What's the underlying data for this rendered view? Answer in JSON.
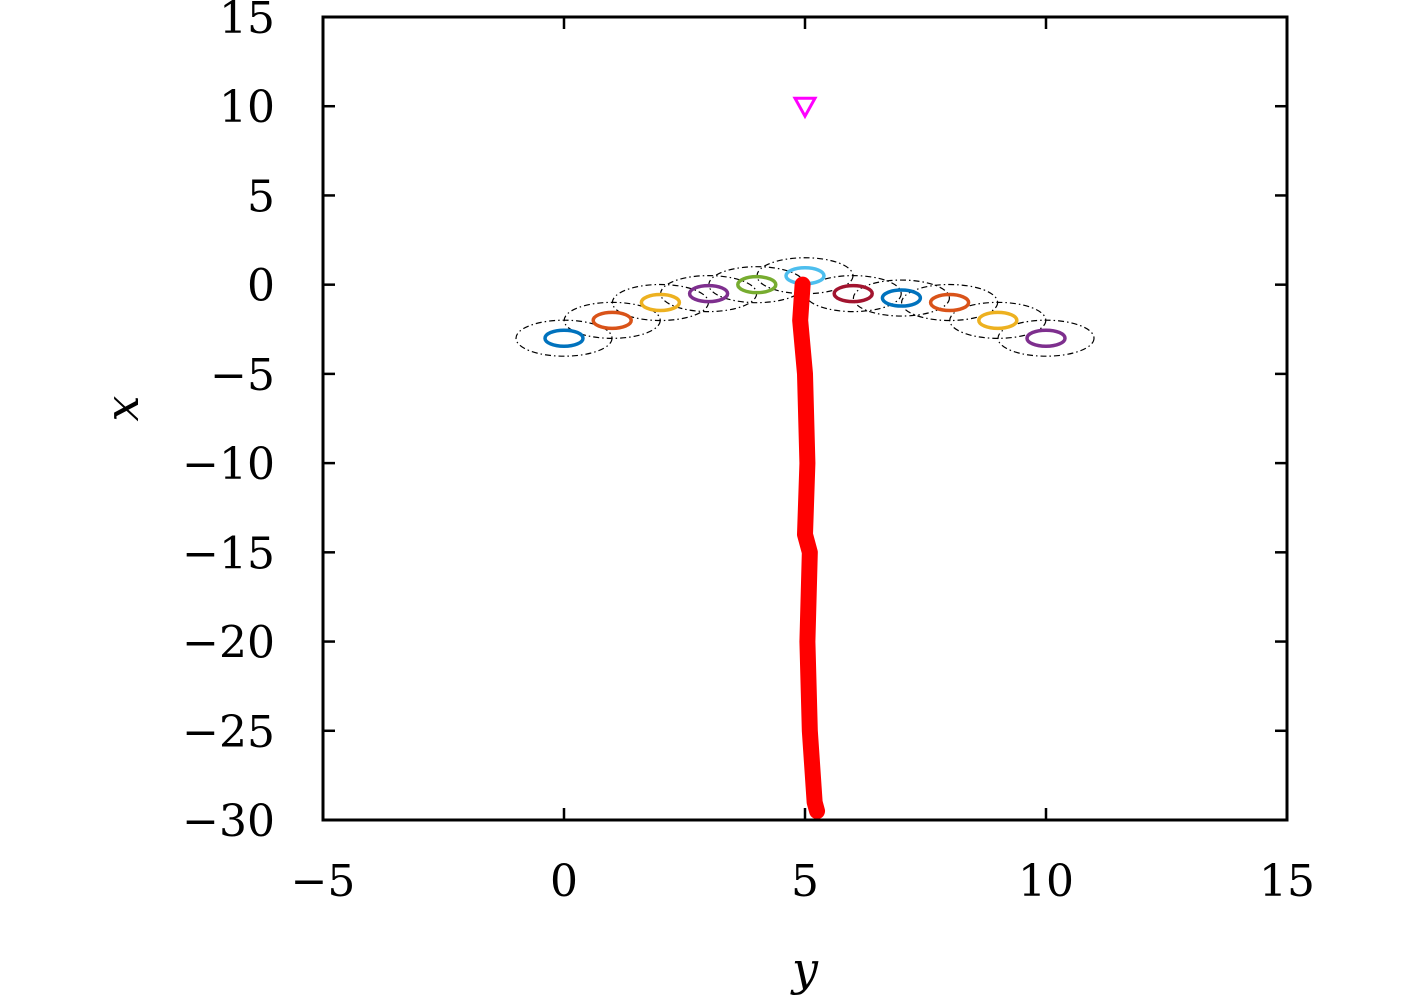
{
  "chart_data": {
    "type": "scatter",
    "title": "",
    "xlabel": "y",
    "ylabel": "x",
    "xlim": [
      -5,
      15
    ],
    "ylim": [
      -30,
      15
    ],
    "xticks": [
      -5,
      0,
      5,
      10,
      15
    ],
    "yticks": [
      15,
      10,
      5,
      0,
      -5,
      -10,
      -15,
      -20,
      -25,
      -30
    ],
    "xtick_labels": [
      "−5",
      "0",
      "5",
      "10",
      "15"
    ],
    "ytick_labels": [
      "15",
      "10",
      "5",
      "0",
      "−5",
      "−10",
      "−15",
      "−20",
      "−25",
      "−30"
    ],
    "grid": false,
    "legend": "none",
    "rings": [
      {
        "y": 0,
        "x": -3,
        "color": "#0072bd"
      },
      {
        "y": 1,
        "x": -2,
        "color": "#d95319"
      },
      {
        "y": 2,
        "x": -1,
        "color": "#edb120"
      },
      {
        "y": 3,
        "x": -0.5,
        "color": "#7e2f8e"
      },
      {
        "y": 4,
        "x": 0,
        "color": "#77ac30"
      },
      {
        "y": 5,
        "x": 0.5,
        "color": "#4dbeee"
      },
      {
        "y": 6,
        "x": -0.5,
        "color": "#a2142f"
      },
      {
        "y": 7,
        "x": -0.75,
        "color": "#0072bd"
      },
      {
        "y": 8,
        "x": -1,
        "color": "#d95319"
      },
      {
        "y": 9,
        "x": -2,
        "color": "#edb120"
      },
      {
        "y": 10,
        "x": -3,
        "color": "#7e2f8e"
      }
    ],
    "marker": {
      "y": 5,
      "x": 10,
      "symbol": "triangle-down",
      "color": "#ff00ff"
    },
    "trajectory": {
      "color": "#ff0000",
      "points": [
        [
          4.95,
          0
        ],
        [
          4.9,
          -2
        ],
        [
          5.0,
          -5
        ],
        [
          5.05,
          -10
        ],
        [
          5.0,
          -14
        ],
        [
          5.1,
          -15
        ],
        [
          5.05,
          -20
        ],
        [
          5.1,
          -25
        ],
        [
          5.2,
          -29
        ],
        [
          5.25,
          -29.5
        ]
      ]
    }
  }
}
